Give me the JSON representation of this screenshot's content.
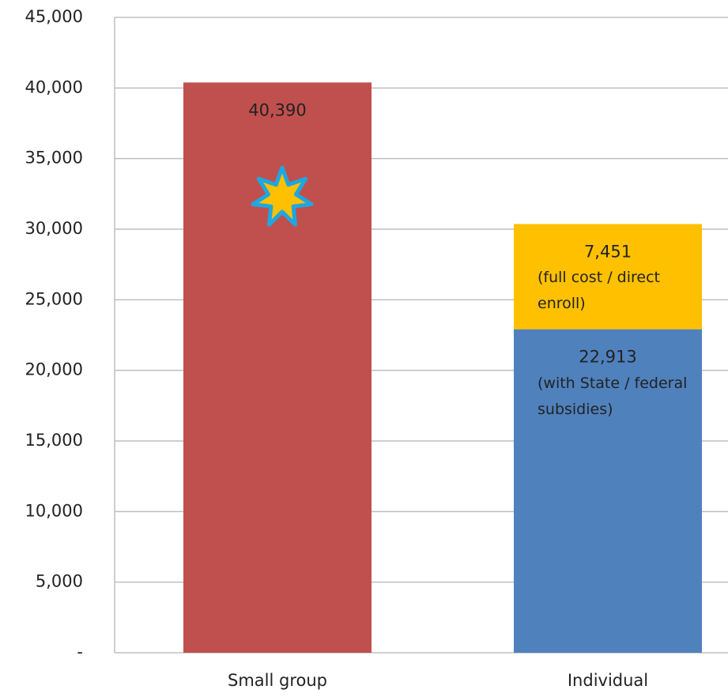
{
  "chart_data": {
    "type": "stacked_bar",
    "categories": [
      "Small group",
      "Individual"
    ],
    "series": [
      {
        "color": "#c0504d",
        "values": [
          40390,
          null
        ],
        "value_labels": [
          "40,390",
          null
        ]
      },
      {
        "name": "(with State / federal subsidies)",
        "color": "#4f81bd",
        "values": [
          null,
          22913
        ],
        "value_labels": [
          null,
          "22,913"
        ]
      },
      {
        "name": "(full cost / direct enroll)",
        "color": "#ffc000",
        "values": [
          null,
          7451
        ],
        "value_labels": [
          null,
          "7,451"
        ]
      }
    ],
    "ylim": [
      0,
      45000
    ],
    "yticks": [
      {
        "value": 0,
        "label": "-"
      },
      {
        "value": 5000,
        "label": "5,000"
      },
      {
        "value": 10000,
        "label": "10,000"
      },
      {
        "value": 15000,
        "label": "15,000"
      },
      {
        "value": 20000,
        "label": "20,000"
      },
      {
        "value": 25000,
        "label": "25,000"
      },
      {
        "value": 30000,
        "label": "30,000"
      },
      {
        "value": 35000,
        "label": "35,000"
      },
      {
        "value": 40000,
        "label": "40,000"
      },
      {
        "value": 45000,
        "label": "45,000"
      }
    ],
    "grid": true
  }
}
